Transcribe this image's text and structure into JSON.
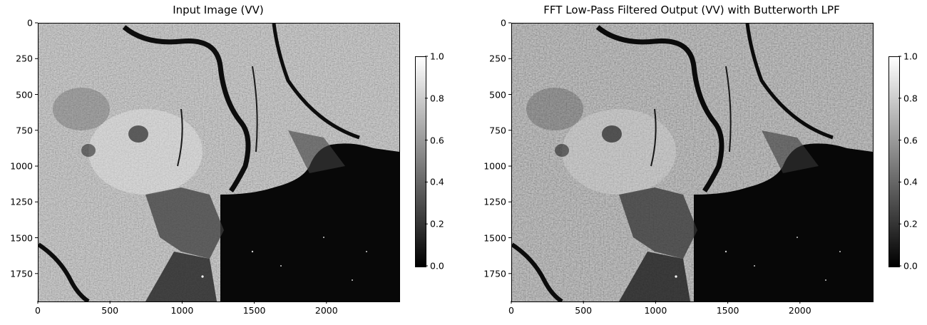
{
  "chart_data": [
    {
      "type": "heatmap",
      "title": "Input Image (VV)",
      "xlabel": "",
      "ylabel": "",
      "x_ticks": [
        0,
        500,
        1000,
        1500,
        2000
      ],
      "y_ticks": [
        0,
        250,
        500,
        750,
        1000,
        1250,
        1500,
        1750
      ],
      "xlim": [
        0,
        2500
      ],
      "ylim": [
        1940,
        0
      ],
      "colormap": "gray",
      "colorbar": {
        "ticks": [
          "0.0",
          "0.2",
          "0.4",
          "0.6",
          "0.8",
          "1.0"
        ],
        "range": [
          0.0,
          1.0
        ]
      }
    },
    {
      "type": "heatmap",
      "title": "FFT Low-Pass Filtered Output (VV) with Butterworth LPF",
      "xlabel": "",
      "ylabel": "",
      "x_ticks": [
        0,
        500,
        1000,
        1500,
        2000
      ],
      "y_ticks": [
        0,
        250,
        500,
        750,
        1000,
        1250,
        1500,
        1750
      ],
      "xlim": [
        0,
        2500
      ],
      "ylim": [
        1940,
        0
      ],
      "colormap": "gray",
      "colorbar": {
        "ticks": [
          "0.0",
          "0.2",
          "0.4",
          "0.6",
          "0.8",
          "1.0"
        ],
        "range": [
          0.0,
          1.0
        ]
      }
    }
  ]
}
